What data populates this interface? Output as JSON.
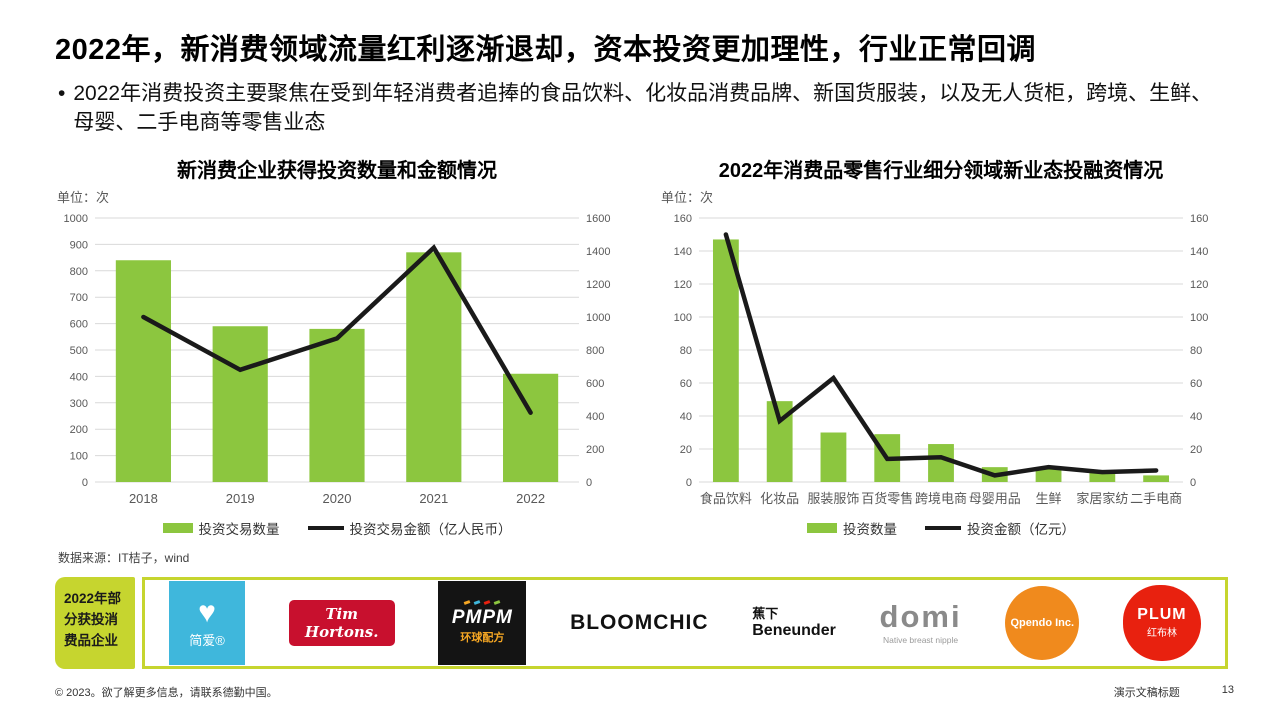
{
  "slide": {
    "title": "2022年，新消费领域流量红利逐渐退却，资本投资更加理性，行业正常回调",
    "bullet": "2022年消费投资主要聚焦在受到年轻消费者追捧的食品饮料、化妆品消费品牌、新国货服装，以及无人货柜，跨境、生鲜、母婴、二手电商等零售业态",
    "source": "数据来源：IT桔子，wind"
  },
  "chart_data": [
    {
      "type": "bar+line",
      "title": "新消费企业获得投资数量和金额情况",
      "unit_label": "单位：次",
      "categories": [
        "2018",
        "2019",
        "2020",
        "2021",
        "2022"
      ],
      "series": [
        {
          "name": "投资交易数量",
          "kind": "bar",
          "axis": "left",
          "color": "#8CC63F",
          "values": [
            840,
            590,
            580,
            870,
            410
          ]
        },
        {
          "name": "投资交易金额（亿人民币）",
          "kind": "line",
          "axis": "right",
          "color": "#1A1A1A",
          "values": [
            1000,
            680,
            870,
            1420,
            420
          ]
        }
      ],
      "left_axis": {
        "min": 0,
        "max": 1000,
        "step": 100
      },
      "right_axis": {
        "min": 0,
        "max": 1600,
        "step": 200
      },
      "grid": true,
      "legend_position": "bottom"
    },
    {
      "type": "bar+line",
      "title": "2022年消费品零售行业细分领域新业态投融资情况",
      "unit_label": "单位：次",
      "categories": [
        "食品饮料",
        "化妆品",
        "服装服饰",
        "百货零售",
        "跨境电商",
        "母婴用品",
        "生鲜",
        "家居家纺",
        "二手电商"
      ],
      "series": [
        {
          "name": "投资数量",
          "kind": "bar",
          "axis": "left",
          "color": "#8CC63F",
          "values": [
            147,
            49,
            30,
            29,
            23,
            9,
            8,
            6,
            4
          ]
        },
        {
          "name": "投资金额（亿元）",
          "kind": "line",
          "axis": "right",
          "color": "#1A1A1A",
          "values": [
            150,
            37,
            63,
            14,
            15,
            4,
            9,
            6,
            7
          ]
        }
      ],
      "left_axis": {
        "min": 0,
        "max": 160,
        "step": 20
      },
      "right_axis": {
        "min": 0,
        "max": 160,
        "step": 20
      },
      "grid": true,
      "legend_position": "bottom"
    }
  ],
  "logo_strip": {
    "label": "2022年部分获投消费品企业",
    "logos": [
      {
        "id": "jianai",
        "text": "简爱®"
      },
      {
        "id": "tim-hortons",
        "text": "Tim Hortons."
      },
      {
        "id": "pmpm",
        "text": "PMPM",
        "subtext": "环球配方"
      },
      {
        "id": "bloomchic",
        "text": "BLOOMCHIC"
      },
      {
        "id": "beneunder",
        "text": "蕉下",
        "subtext": "Beneunder"
      },
      {
        "id": "domi",
        "text": "domi",
        "subtext": "Native breast nipple"
      },
      {
        "id": "qpendo",
        "text": "Qpendo Inc."
      },
      {
        "id": "plum",
        "text": "PLUM",
        "subtext": "红布林"
      }
    ]
  },
  "footer": {
    "left": "© 2023。欲了解更多信息，请联系德勤中国。",
    "doc_title": "演示文稿标题",
    "page": "13"
  },
  "colors": {
    "bar_green": "#8CC63F",
    "line_black": "#1A1A1A",
    "accent_chartreuse": "#C6D52F",
    "jianai_blue": "#3FB7DC",
    "tim_red": "#C8102E",
    "qpendo_orange": "#F08A1D",
    "plum_red": "#E8210F",
    "grid_gray": "#D9D9D9",
    "axis_text": "#595959"
  }
}
